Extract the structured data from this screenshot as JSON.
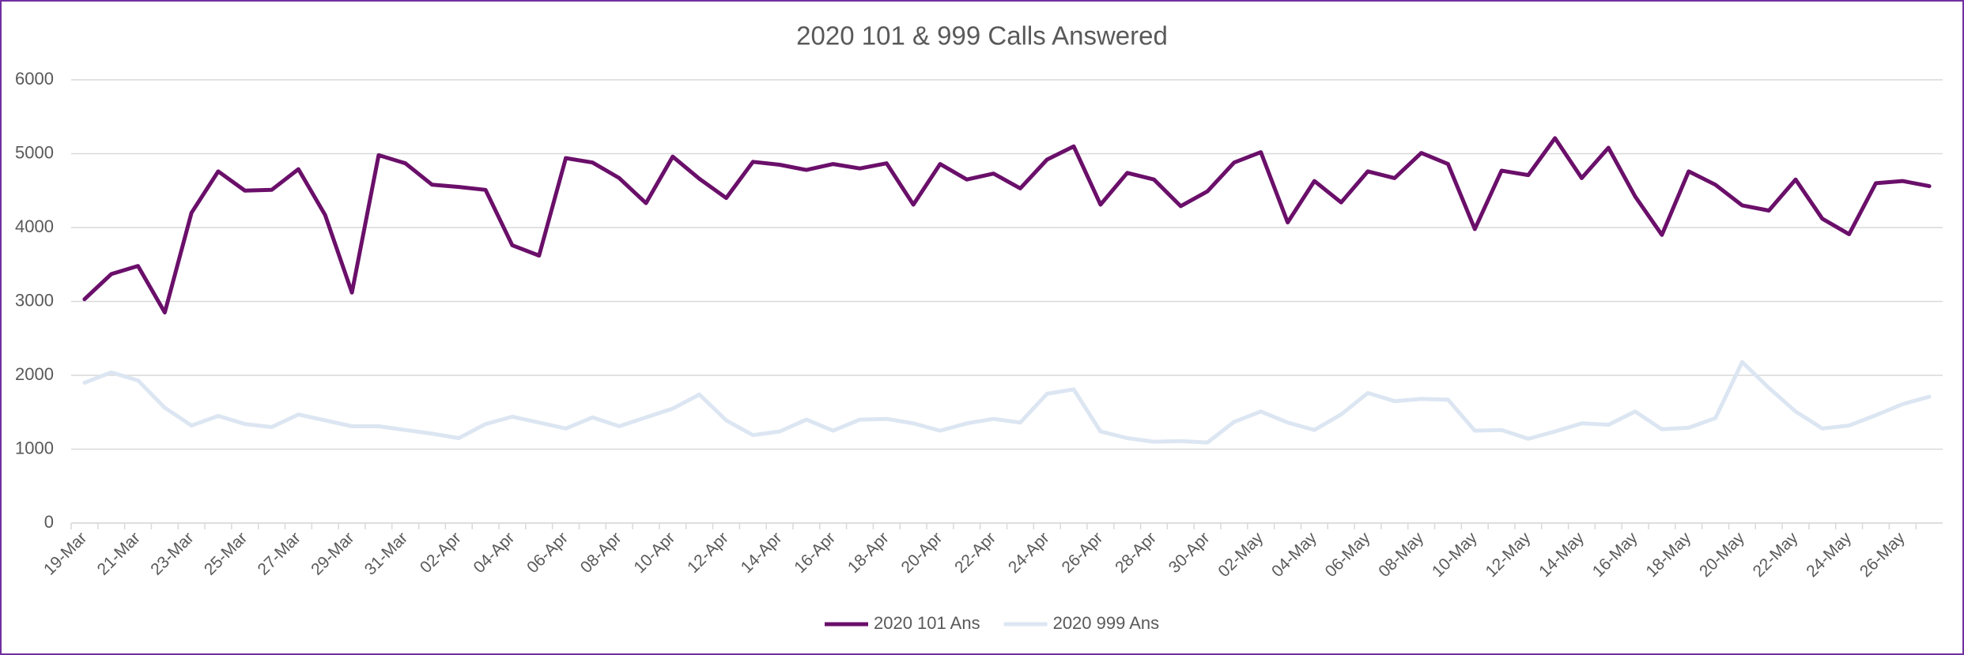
{
  "chart_data": {
    "type": "line",
    "title": "2020 101 & 999 Calls Answered",
    "categories": [
      "19-Mar",
      null,
      "21-Mar",
      null,
      "23-Mar",
      null,
      "25-Mar",
      null,
      "27-Mar",
      null,
      "29-Mar",
      null,
      "31-Mar",
      null,
      "02-Apr",
      null,
      "04-Apr",
      null,
      "06-Apr",
      null,
      "08-Apr",
      null,
      "10-Apr",
      null,
      "12-Apr",
      null,
      "14-Apr",
      null,
      "16-Apr",
      null,
      "18-Apr",
      null,
      "20-Apr",
      null,
      "22-Apr",
      null,
      "24-Apr",
      null,
      "26-Apr",
      null,
      "28-Apr",
      null,
      "30-Apr",
      null,
      "02-May",
      null,
      "04-May",
      null,
      "06-May",
      null,
      "08-May",
      null,
      "10-May",
      null,
      "12-May",
      null,
      "14-May",
      null,
      "16-May",
      null,
      "18-May",
      null,
      "20-May",
      null,
      "22-May",
      null,
      "24-May",
      null,
      "26-May",
      null
    ],
    "series": [
      {
        "name": "2020 101 Ans",
        "color": "#6a0f6a",
        "values": [
          3030,
          3370,
          3480,
          2850,
          4200,
          4760,
          4500,
          4510,
          4790,
          4170,
          3120,
          4980,
          4870,
          4580,
          4550,
          4510,
          3760,
          3620,
          4940,
          4880,
          4670,
          4330,
          4960,
          4660,
          4400,
          4890,
          4850,
          4780,
          4860,
          4800,
          4870,
          4310,
          4860,
          4650,
          4730,
          4530,
          4920,
          5100,
          4310,
          4740,
          4650,
          4290,
          4490,
          4880,
          5020,
          4070,
          4630,
          4340,
          4760,
          4670,
          5010,
          4860,
          3980,
          4770,
          4710,
          5210,
          4670,
          5080,
          4420,
          3900,
          4760,
          4580,
          4300,
          4230,
          4650,
          4120,
          3910,
          4600,
          4630,
          4560
        ]
      },
      {
        "name": "2020 999 Ans",
        "color": "#dce6f2",
        "values": [
          1900,
          2040,
          1930,
          1560,
          1320,
          1450,
          1340,
          1300,
          1470,
          1390,
          1310,
          1310,
          1260,
          1210,
          1150,
          1340,
          1440,
          1360,
          1280,
          1430,
          1310,
          1430,
          1550,
          1740,
          1390,
          1190,
          1240,
          1400,
          1250,
          1400,
          1410,
          1350,
          1250,
          1350,
          1410,
          1360,
          1750,
          1810,
          1240,
          1150,
          1100,
          1110,
          1090,
          1370,
          1510,
          1360,
          1260,
          1470,
          1760,
          1650,
          1680,
          1670,
          1250,
          1260,
          1140,
          1240,
          1350,
          1330,
          1510,
          1270,
          1290,
          1420,
          2180,
          1830,
          1510,
          1280,
          1320,
          1460,
          1610,
          1710
        ]
      }
    ],
    "ylim": [
      0,
      6000
    ],
    "yticks": [
      0,
      1000,
      2000,
      3000,
      4000,
      5000,
      6000
    ],
    "grid": true,
    "legend": "bottom"
  }
}
